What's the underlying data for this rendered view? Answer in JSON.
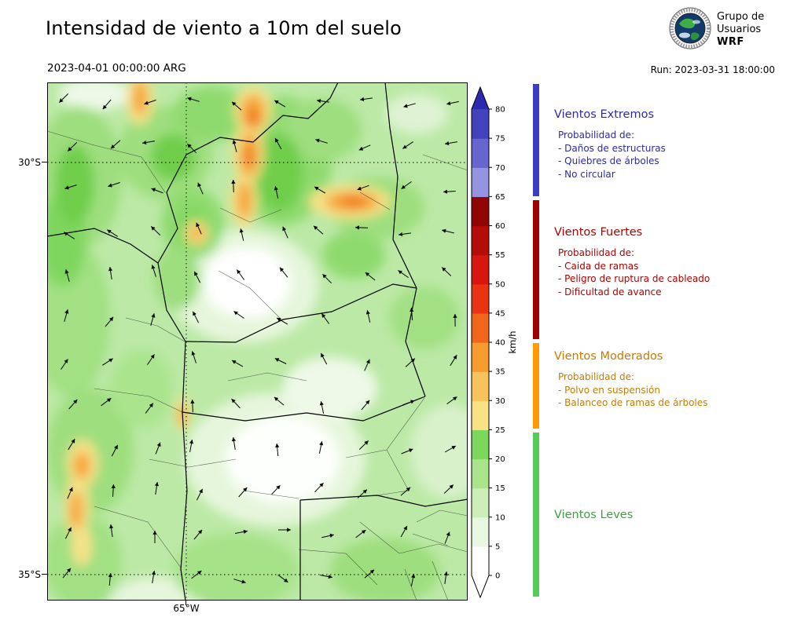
{
  "header": {
    "title": "Intensidad de viento a 10m del suelo",
    "valid_time": "2023-04-01 00:00:00 ARG",
    "run_time": "Run: 2023-03-31 18:00:00",
    "logo": {
      "line1": "Grupo de",
      "line2": "Usuarios",
      "line3": "WRF"
    }
  },
  "map": {
    "lat_labels": [
      {
        "text": "30°S"
      },
      {
        "text": "35°S"
      }
    ],
    "lon_labels": [
      {
        "text": "65°W"
      }
    ]
  },
  "colorbar": {
    "unit": "km/h",
    "ticks": [
      "0",
      "5",
      "10",
      "15",
      "20",
      "25",
      "30",
      "35",
      "40",
      "45",
      "50",
      "55",
      "60",
      "65",
      "70",
      "75",
      "80"
    ],
    "segment_colors": [
      "#ffffff",
      "#e8f7e0",
      "#cdeeb8",
      "#a9e48c",
      "#7dd75c",
      "#f9e286",
      "#f8c35c",
      "#f69b2e",
      "#f1661a",
      "#e93414",
      "#d6160f",
      "#b30c09",
      "#910404",
      "#9494e1",
      "#6666ce",
      "#4242bc"
    ],
    "over_color": "#2a2aae",
    "under_color": "#ffffff"
  },
  "legend": {
    "sections": [
      {
        "name": "Vientos Extremos",
        "bar_color": "#3c3cc4",
        "text_color": "#2a2aa8",
        "prob_label": "Probabilidad de:",
        "items": [
          "- Daños de estructuras",
          "- Quiebres de árboles",
          "- No circular"
        ]
      },
      {
        "name": "Vientos Fuertes",
        "bar_color": "#a30000",
        "text_color": "#b00000",
        "prob_label": "Probabilidad de:",
        "items": [
          "- Caida de ramas",
          "- Peligro de ruptura de cableado",
          "- Dificultad de avance"
        ]
      },
      {
        "name": "Vientos Moderados",
        "bar_color": "#ff9a00",
        "text_color": "#c27d00",
        "prob_label": "Probabilidad de:",
        "items": [
          "- Polvo en suspensión",
          "- Balanceo de ramas de árboles"
        ]
      },
      {
        "name": "Vientos Leves",
        "bar_color": "#55cc55",
        "text_color": "#3f9e3f",
        "prob_label": "",
        "items": []
      }
    ]
  }
}
